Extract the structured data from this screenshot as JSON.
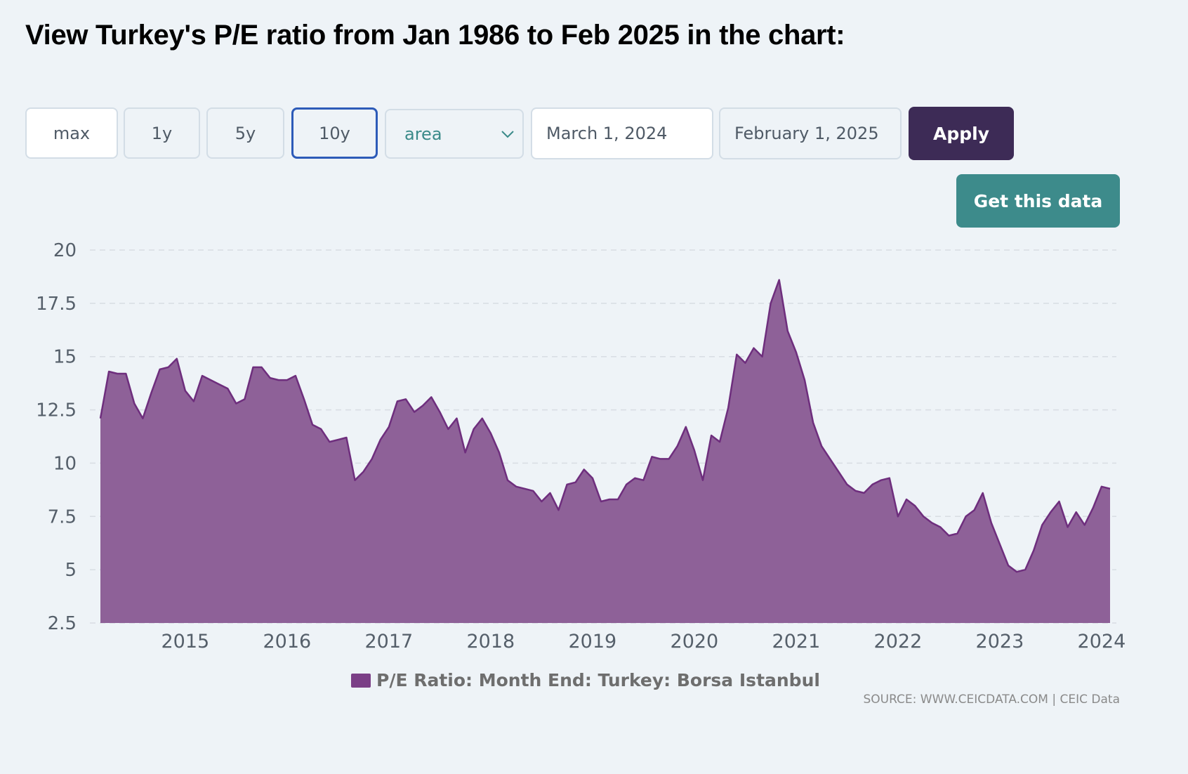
{
  "heading": "View Turkey's P/E ratio from Jan 1986 to Feb 2025 in the chart:",
  "controls": {
    "range_buttons": [
      "max",
      "1y",
      "5y",
      "10y"
    ],
    "active_range": "10y",
    "chart_type": "area",
    "start_date": "March 1, 2024",
    "end_date": "February 1, 2025",
    "apply_label": "Apply",
    "get_data_label": "Get this data"
  },
  "source": "SOURCE: WWW.CEICDATA.COM | CEIC Data",
  "colors": {
    "area_fill": "#8e6198",
    "area_line": "#6e2e7d",
    "legend_swatch": "#7b3f87",
    "apply_bg": "#3d2b56",
    "get_data_bg": "#3d8b8b"
  },
  "chart_data": {
    "type": "area",
    "legend": [
      "P/E Ratio: Month End: Turkey: Borsa Istanbul"
    ],
    "x_start": "2014-03",
    "x_ticks": [
      "2015",
      "2016",
      "2017",
      "2018",
      "2019",
      "2020",
      "2021",
      "2022",
      "2023",
      "2024"
    ],
    "y_ticks": [
      "20",
      "17.5",
      "15",
      "12.5",
      "10",
      "7.5",
      "5",
      "2.5"
    ],
    "ylim": [
      2.5,
      20
    ],
    "grid": true,
    "legend_position": "bottom",
    "series": [
      {
        "name": "P/E Ratio: Month End: Turkey: Borsa Istanbul",
        "values": [
          12.1,
          14.3,
          14.2,
          14.2,
          12.8,
          12.1,
          13.3,
          14.4,
          14.5,
          14.9,
          13.4,
          12.9,
          14.1,
          13.9,
          13.7,
          13.5,
          12.8,
          13.0,
          14.5,
          14.5,
          14.0,
          13.9,
          13.9,
          14.1,
          13.0,
          11.8,
          11.6,
          11.0,
          11.1,
          11.2,
          9.2,
          9.6,
          10.2,
          11.1,
          11.7,
          12.9,
          13.0,
          12.4,
          12.7,
          13.1,
          12.4,
          11.6,
          12.1,
          10.5,
          11.6,
          12.1,
          11.4,
          10.5,
          9.2,
          8.9,
          8.8,
          8.7,
          8.2,
          8.6,
          7.8,
          9.0,
          9.1,
          9.7,
          9.3,
          8.2,
          8.3,
          8.3,
          9.0,
          9.3,
          9.2,
          10.3,
          10.2,
          10.2,
          10.8,
          11.7,
          10.6,
          9.2,
          11.3,
          11.0,
          12.6,
          15.1,
          14.7,
          15.4,
          15.0,
          17.5,
          18.6,
          16.2,
          15.2,
          13.9,
          11.9,
          10.8,
          10.2,
          9.6,
          9.0,
          8.7,
          8.6,
          9.0,
          9.2,
          9.3,
          7.5,
          8.3,
          8.0,
          7.5,
          7.2,
          7.0,
          6.6,
          6.7,
          7.5,
          7.8,
          8.6,
          7.2,
          6.2,
          5.2,
          4.9,
          5.0,
          5.9,
          7.1,
          7.7,
          8.2,
          7.0,
          7.7,
          7.1,
          7.9,
          8.9,
          8.8
        ]
      }
    ]
  }
}
